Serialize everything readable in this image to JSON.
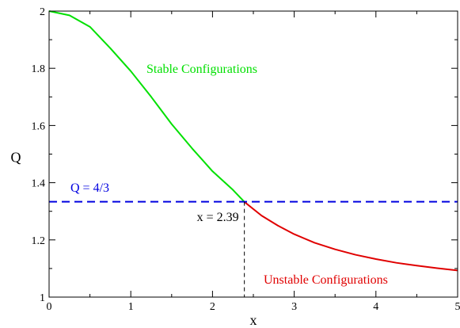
{
  "chart_data": {
    "type": "line",
    "xlabel": "x",
    "ylabel": "Q",
    "xlim": [
      0,
      5
    ],
    "ylim": [
      1,
      2
    ],
    "x_ticks": [
      "0",
      "1",
      "2",
      "3",
      "4",
      "5"
    ],
    "y_ticks": [
      "1",
      "1.2",
      "1.4",
      "1.6",
      "1.8",
      "2"
    ],
    "grid": false,
    "colors": {
      "stable": "#00e000",
      "unstable": "#e00000",
      "reference": "#0000e0",
      "marker": "#000000"
    },
    "series": [
      {
        "name": "Stable Configurations",
        "x": [
          0,
          0.25,
          0.5,
          0.75,
          1.0,
          1.25,
          1.5,
          1.75,
          2.0,
          2.25,
          2.39
        ],
        "y": [
          2.0,
          1.985,
          1.945,
          1.87,
          1.79,
          1.7,
          1.605,
          1.52,
          1.44,
          1.375,
          1.333
        ]
      },
      {
        "name": "Unstable Configurations",
        "x": [
          2.39,
          2.6,
          2.8,
          3.0,
          3.25,
          3.5,
          3.75,
          4.0,
          4.25,
          4.5,
          4.75,
          5.0
        ],
        "y": [
          1.333,
          1.285,
          1.25,
          1.22,
          1.19,
          1.167,
          1.148,
          1.133,
          1.12,
          1.11,
          1.101,
          1.093
        ]
      }
    ],
    "reference_line": {
      "label": "Q = 4/3",
      "y": 1.3333
    },
    "marker_line": {
      "label": "x = 2.39",
      "x": 2.39
    }
  }
}
